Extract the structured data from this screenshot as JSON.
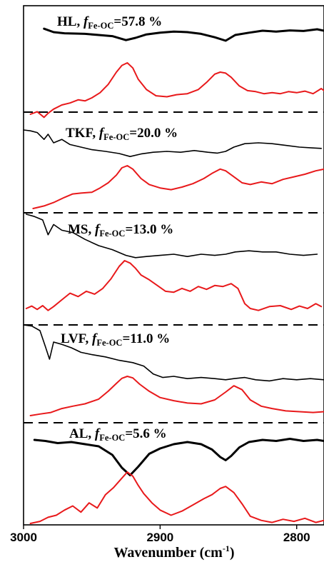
{
  "chart_data": {
    "type": "line",
    "title": "",
    "xlabel": "Wavenumber (cm",
    "xlabel_sup": "-1",
    "xlabel_close": ")",
    "xlim": [
      3000,
      2780
    ],
    "x_reversed": true,
    "xticks": [
      3000,
      2900,
      2800
    ],
    "ylabel": "",
    "grid": false,
    "legend": "none",
    "colors": {
      "upper": "#000000",
      "lower": "#e8191b",
      "separator": "#000000"
    },
    "series_note_peaks": [
      2956,
      2922,
      2852
    ],
    "panels": [
      {
        "label_main": "HL, ",
        "label_f": "f",
        "label_sub": "Fe-OC",
        "label_value": "=57.8 %",
        "upper_line_weight": "thick",
        "upper": {
          "x": [
            2985,
            2978,
            2970,
            2962,
            2955,
            2945,
            2935,
            2925,
            2918,
            2910,
            2900,
            2890,
            2880,
            2870,
            2860,
            2852,
            2845,
            2835,
            2825,
            2815,
            2805,
            2795,
            2785,
            2780
          ],
          "y": [
            0.12,
            0.0,
            -0.04,
            -0.05,
            -0.06,
            -0.1,
            -0.14,
            -0.28,
            -0.2,
            -0.08,
            -0.02,
            0.02,
            0.0,
            -0.06,
            -0.18,
            -0.3,
            -0.1,
            -0.02,
            0.05,
            0.02,
            0.06,
            0.04,
            0.1,
            0.05
          ]
        },
        "lower": {
          "x": [
            2995,
            2990,
            2985,
            2982,
            2978,
            2972,
            2966,
            2960,
            2955,
            2950,
            2944,
            2938,
            2932,
            2928,
            2924,
            2920,
            2916,
            2910,
            2903,
            2895,
            2888,
            2880,
            2872,
            2866,
            2860,
            2856,
            2852,
            2848,
            2842,
            2836,
            2830,
            2824,
            2818,
            2812,
            2806,
            2800,
            2794,
            2788,
            2782,
            2780
          ],
          "y": [
            0.0,
            0.05,
            -0.06,
            0.02,
            0.1,
            0.18,
            0.22,
            0.28,
            0.26,
            0.32,
            0.42,
            0.58,
            0.82,
            0.95,
            1.0,
            0.9,
            0.68,
            0.48,
            0.36,
            0.34,
            0.38,
            0.4,
            0.48,
            0.62,
            0.78,
            0.82,
            0.8,
            0.72,
            0.55,
            0.46,
            0.44,
            0.4,
            0.42,
            0.4,
            0.44,
            0.42,
            0.45,
            0.4,
            0.5,
            0.46
          ]
        }
      },
      {
        "label_main": "TKF, ",
        "label_f": "f",
        "label_sub": "Fe-OC",
        "label_value": "=20.0 %",
        "upper_line_weight": "thin",
        "upper": {
          "x": [
            3000,
            2995,
            2990,
            2985,
            2982,
            2978,
            2972,
            2966,
            2958,
            2950,
            2940,
            2930,
            2922,
            2914,
            2905,
            2895,
            2885,
            2875,
            2865,
            2858,
            2852,
            2846,
            2838,
            2828,
            2818,
            2808,
            2798,
            2788,
            2782
          ],
          "y": [
            0.0,
            -0.02,
            -0.06,
            -0.22,
            -0.1,
            -0.3,
            -0.22,
            -0.34,
            -0.4,
            -0.46,
            -0.5,
            -0.55,
            -0.62,
            -0.56,
            -0.52,
            -0.5,
            -0.52,
            -0.48,
            -0.52,
            -0.54,
            -0.5,
            -0.4,
            -0.32,
            -0.3,
            -0.32,
            -0.36,
            -0.4,
            -0.42,
            -0.43
          ]
        },
        "lower": {
          "x": [
            2993,
            2985,
            2978,
            2970,
            2964,
            2958,
            2950,
            2944,
            2938,
            2932,
            2928,
            2924,
            2920,
            2914,
            2908,
            2900,
            2892,
            2884,
            2876,
            2868,
            2862,
            2856,
            2852,
            2846,
            2840,
            2834,
            2826,
            2818,
            2810,
            2802,
            2794,
            2786,
            2780
          ],
          "y": [
            0.0,
            0.06,
            0.14,
            0.26,
            0.34,
            0.36,
            0.38,
            0.48,
            0.6,
            0.78,
            0.95,
            1.0,
            0.92,
            0.7,
            0.56,
            0.48,
            0.44,
            0.5,
            0.58,
            0.7,
            0.82,
            0.92,
            0.88,
            0.74,
            0.6,
            0.56,
            0.62,
            0.58,
            0.68,
            0.74,
            0.8,
            0.88,
            0.92
          ]
        }
      },
      {
        "label_main": "MS, ",
        "label_f": "f",
        "label_sub": "Fe-OC",
        "label_value": "=13.0 %",
        "upper_line_weight": "thin",
        "upper": {
          "x": [
            2998,
            2992,
            2986,
            2982,
            2978,
            2972,
            2964,
            2955,
            2945,
            2935,
            2925,
            2918,
            2910,
            2900,
            2890,
            2880,
            2870,
            2860,
            2852,
            2845,
            2835,
            2825,
            2815,
            2805,
            2795,
            2785
          ],
          "y": [
            0.0,
            -0.04,
            -0.1,
            -0.36,
            -0.18,
            -0.28,
            -0.32,
            -0.44,
            -0.55,
            -0.62,
            -0.72,
            -0.76,
            -0.74,
            -0.72,
            -0.7,
            -0.74,
            -0.7,
            -0.72,
            -0.7,
            -0.66,
            -0.64,
            -0.66,
            -0.66,
            -0.7,
            -0.72,
            -0.7
          ]
        },
        "lower": {
          "x": [
            2998,
            2994,
            2990,
            2986,
            2982,
            2978,
            2972,
            2966,
            2960,
            2954,
            2948,
            2942,
            2936,
            2930,
            2926,
            2922,
            2918,
            2914,
            2908,
            2902,
            2896,
            2890,
            2884,
            2878,
            2872,
            2866,
            2860,
            2854,
            2848,
            2843,
            2838,
            2834,
            2828,
            2820,
            2812,
            2804,
            2798,
            2792,
            2786,
            2782
          ],
          "y": [
            0.0,
            0.05,
            -0.02,
            0.06,
            -0.04,
            0.04,
            0.18,
            0.32,
            0.25,
            0.36,
            0.3,
            0.42,
            0.62,
            0.88,
            1.0,
            0.95,
            0.84,
            0.7,
            0.6,
            0.48,
            0.36,
            0.34,
            0.42,
            0.36,
            0.46,
            0.4,
            0.48,
            0.46,
            0.52,
            0.42,
            0.1,
            0.0,
            -0.04,
            0.04,
            0.06,
            -0.02,
            0.05,
            0.0,
            0.1,
            0.04
          ]
        }
      },
      {
        "label_main": "LVF, ",
        "label_f": "f",
        "label_sub": "Fe-OC",
        "label_value": "=11.0 %",
        "upper_line_weight": "thin",
        "upper": {
          "x": [
            3000,
            2994,
            2988,
            2984,
            2981,
            2978,
            2972,
            2965,
            2958,
            2950,
            2940,
            2930,
            2920,
            2912,
            2905,
            2898,
            2890,
            2880,
            2870,
            2860,
            2852,
            2846,
            2838,
            2830,
            2820,
            2810,
            2800,
            2790,
            2780
          ],
          "y": [
            0.0,
            -0.02,
            -0.1,
            -0.38,
            -0.6,
            -0.3,
            -0.34,
            -0.4,
            -0.48,
            -0.52,
            -0.56,
            -0.62,
            -0.66,
            -0.72,
            -0.86,
            -0.92,
            -0.9,
            -0.94,
            -0.92,
            -0.94,
            -0.96,
            -0.94,
            -0.92,
            -0.96,
            -0.98,
            -0.94,
            -0.96,
            -0.94,
            -0.96
          ]
        },
        "lower": {
          "x": [
            2995,
            2988,
            2980,
            2972,
            2964,
            2955,
            2945,
            2938,
            2932,
            2928,
            2924,
            2920,
            2915,
            2908,
            2900,
            2890,
            2880,
            2870,
            2860,
            2852,
            2846,
            2840,
            2834,
            2826,
            2818,
            2808,
            2798,
            2788,
            2780
          ],
          "y": [
            0.0,
            0.04,
            0.08,
            0.18,
            0.24,
            0.3,
            0.42,
            0.62,
            0.82,
            0.95,
            1.0,
            0.96,
            0.8,
            0.62,
            0.46,
            0.38,
            0.32,
            0.3,
            0.4,
            0.6,
            0.76,
            0.66,
            0.4,
            0.24,
            0.18,
            0.12,
            0.1,
            0.08,
            0.1
          ]
        }
      },
      {
        "label_main": "AL, ",
        "label_f": "f",
        "label_sub": "Fe-OC",
        "label_value": "=5.6 %",
        "upper_line_weight": "thick",
        "upper": {
          "x": [
            2992,
            2984,
            2975,
            2965,
            2955,
            2945,
            2935,
            2928,
            2922,
            2916,
            2908,
            2900,
            2890,
            2880,
            2870,
            2862,
            2856,
            2852,
            2848,
            2842,
            2835,
            2825,
            2815,
            2805,
            2795,
            2785,
            2780
          ],
          "y": [
            0.0,
            -0.02,
            -0.06,
            -0.04,
            -0.08,
            -0.12,
            -0.28,
            -0.52,
            -0.66,
            -0.5,
            -0.26,
            -0.16,
            -0.08,
            -0.04,
            -0.08,
            -0.18,
            -0.32,
            -0.38,
            -0.3,
            -0.14,
            -0.04,
            0.0,
            -0.02,
            0.02,
            -0.02,
            0.0,
            -0.02
          ]
        },
        "lower": {
          "x": [
            2995,
            2988,
            2982,
            2976,
            2970,
            2964,
            2958,
            2952,
            2946,
            2940,
            2934,
            2928,
            2924,
            2920,
            2916,
            2912,
            2906,
            2900,
            2892,
            2884,
            2876,
            2868,
            2862,
            2856,
            2852,
            2846,
            2840,
            2834,
            2826,
            2818,
            2810,
            2802,
            2794,
            2786,
            2780
          ],
          "y": [
            0.0,
            0.04,
            0.12,
            0.16,
            0.26,
            0.34,
            0.22,
            0.4,
            0.3,
            0.56,
            0.7,
            0.88,
            1.0,
            0.92,
            0.74,
            0.58,
            0.4,
            0.26,
            0.16,
            0.24,
            0.36,
            0.48,
            0.56,
            0.68,
            0.72,
            0.6,
            0.38,
            0.14,
            0.06,
            0.02,
            0.08,
            0.04,
            0.1,
            0.02,
            0.06
          ]
        }
      }
    ]
  }
}
